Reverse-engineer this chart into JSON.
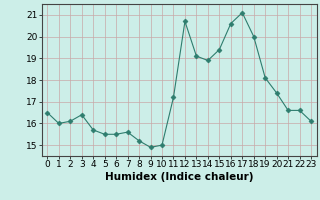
{
  "x": [
    0,
    1,
    2,
    3,
    4,
    5,
    6,
    7,
    8,
    9,
    10,
    11,
    12,
    13,
    14,
    15,
    16,
    17,
    18,
    19,
    20,
    21,
    22,
    23
  ],
  "y": [
    16.5,
    16.0,
    16.1,
    16.4,
    15.7,
    15.5,
    15.5,
    15.6,
    15.2,
    14.9,
    15.0,
    17.2,
    20.7,
    19.1,
    18.9,
    19.4,
    20.6,
    21.1,
    20.0,
    18.1,
    17.4,
    16.6,
    16.6,
    16.1
  ],
  "xlabel": "Humidex (Indice chaleur)",
  "ylabel": "",
  "ylim": [
    14.5,
    21.5
  ],
  "xlim": [
    -0.5,
    23.5
  ],
  "yticks": [
    15,
    16,
    17,
    18,
    19,
    20,
    21
  ],
  "xticks": [
    0,
    1,
    2,
    3,
    4,
    5,
    6,
    7,
    8,
    9,
    10,
    11,
    12,
    13,
    14,
    15,
    16,
    17,
    18,
    19,
    20,
    21,
    22,
    23
  ],
  "line_color": "#2e7d6e",
  "marker": "D",
  "marker_size": 2.5,
  "bg_color": "#cceee8",
  "grid_color": "#c8a8a8",
  "label_fontsize": 7.5,
  "tick_fontsize": 6.5
}
